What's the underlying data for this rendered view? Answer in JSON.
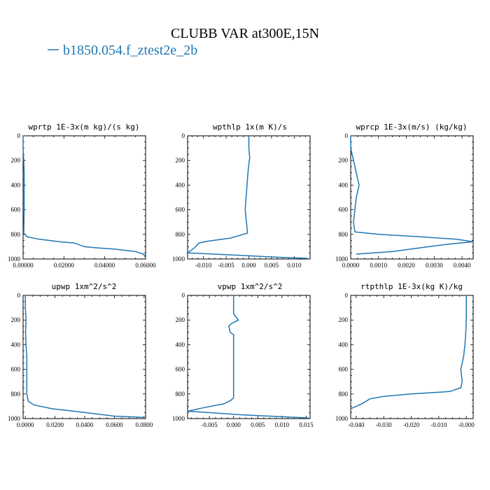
{
  "figure_title": "CLUBB VAR at300E,15N",
  "legend": {
    "label": "b1850.054.f_ztest2e_2b",
    "color": "#1f77b4"
  },
  "chart_data": [
    {
      "type": "line",
      "title": "wprtp  1E-3x(m kg)/(s kg)",
      "xlim": [
        0,
        0.06
      ],
      "ylim": [
        1000,
        0
      ],
      "xticks": [
        0,
        0.02,
        0.04,
        0.06
      ],
      "xtick_labels": [
        "0.00000",
        "0.02000",
        "0.04000",
        "0.06000"
      ],
      "yticks": [
        0,
        200,
        400,
        600,
        800,
        1000
      ],
      "ytick_labels": [
        "0",
        "200",
        "400",
        "600",
        "800",
        "1000"
      ],
      "series": [
        {
          "x": [
            0,
            0,
            0.0003,
            0.0005,
            0.0005,
            0.0005,
            0.0005,
            0.0004,
            0.0003,
            0.002,
            0.008,
            0.018,
            0.025,
            0.03,
            0.037,
            0.045,
            0.055,
            0.059,
            0.06
          ],
          "y": [
            0,
            100,
            200,
            300,
            400,
            500,
            600,
            700,
            790,
            820,
            840,
            860,
            870,
            900,
            910,
            920,
            940,
            960,
            990
          ]
        }
      ]
    },
    {
      "type": "line",
      "title": "wpthlp  1x(m K)/s",
      "xlim": [
        -0.0135,
        0.0135
      ],
      "ylim": [
        1000,
        0
      ],
      "xticks": [
        -0.01,
        -0.005,
        0,
        0.005,
        0.01
      ],
      "xtick_labels": [
        "-0.010",
        "-0.005",
        "0.000",
        "0.005",
        "0.010"
      ],
      "yticks": [
        0,
        200,
        400,
        600,
        800,
        1000
      ],
      "ytick_labels": [
        "0",
        "200",
        "400",
        "600",
        "800",
        "1000"
      ],
      "series": [
        {
          "x": [
            0,
            0,
            0.0002,
            0.0001,
            -0.0002,
            -0.0004,
            -0.0006,
            -0.0008,
            -0.0003,
            -0.004,
            -0.009,
            -0.011,
            -0.012,
            -0.0135,
            -0.002,
            0.006,
            0.013
          ],
          "y": [
            0,
            100,
            180,
            200,
            300,
            400,
            500,
            600,
            790,
            830,
            855,
            870,
            910,
            950,
            970,
            985,
            995
          ]
        }
      ]
    },
    {
      "type": "line",
      "title": "wprcp  1E-3x(m/s) (kg/kg)",
      "xlim": [
        0,
        0.0044
      ],
      "ylim": [
        1000,
        0
      ],
      "xticks": [
        0,
        0.001,
        0.002,
        0.003,
        0.004
      ],
      "xtick_labels": [
        "0.0000",
        "0.0010",
        "0.0020",
        "0.0030",
        "0.0040"
      ],
      "yticks": [
        0,
        200,
        400,
        600,
        800,
        1000
      ],
      "ytick_labels": [
        "0",
        "200",
        "400",
        "600",
        "800",
        "1000"
      ],
      "series": [
        {
          "x": [
            0,
            0,
            0.0001,
            0.0002,
            0.0003,
            0.0002,
            0.00015,
            0.0001,
            0.00015,
            0.001,
            0.0025,
            0.0038,
            0.0044,
            0.0035,
            0.0028,
            0.0015,
            0.0002
          ],
          "y": [
            0,
            100,
            200,
            300,
            400,
            500,
            600,
            700,
            780,
            800,
            820,
            840,
            860,
            880,
            900,
            940,
            960
          ]
        }
      ]
    },
    {
      "type": "line",
      "title": "upwp  1xm^2/s^2",
      "xlim": [
        -0.0015,
        0.081
      ],
      "ylim": [
        1000,
        0
      ],
      "xticks": [
        0,
        0.02,
        0.04,
        0.06,
        0.08
      ],
      "xtick_labels": [
        "0.0000",
        "0.0200",
        "0.0400",
        "0.0600",
        "0.0800"
      ],
      "yticks": [
        0,
        200,
        400,
        600,
        800,
        1000
      ],
      "ytick_labels": [
        "0",
        "200",
        "400",
        "600",
        "800",
        "1000"
      ],
      "series": [
        {
          "x": [
            0,
            0,
            0.0005,
            0.0002,
            0.0005,
            0.001,
            0.001,
            0.001,
            0.002,
            0.006,
            0.018,
            0.04,
            0.06,
            0.08
          ],
          "y": [
            0,
            100,
            190,
            300,
            400,
            500,
            600,
            800,
            860,
            890,
            920,
            950,
            980,
            990
          ]
        }
      ]
    },
    {
      "type": "line",
      "title": "vpwp  1xm^2/s^2",
      "xlim": [
        -0.0095,
        0.0158
      ],
      "ylim": [
        1000,
        0
      ],
      "xticks": [
        -0.005,
        0,
        0.005,
        0.01,
        0.015
      ],
      "xtick_labels": [
        "-0.005",
        "0.000",
        "0.005",
        "0.010",
        "0.015"
      ],
      "yticks": [
        0,
        200,
        400,
        600,
        800,
        1000
      ],
      "ytick_labels": [
        "0",
        "200",
        "400",
        "600",
        "800",
        "1000"
      ],
      "series": [
        {
          "x": [
            0,
            0,
            0.001,
            -0.0005,
            -0.001,
            -0.0007,
            0,
            0,
            0,
            -0.0005,
            -0.002,
            -0.006,
            -0.0095,
            0.002,
            0.0155
          ],
          "y": [
            0,
            150,
            200,
            230,
            250,
            300,
            320,
            500,
            830,
            850,
            880,
            910,
            940,
            970,
            995
          ]
        }
      ]
    },
    {
      "type": "line",
      "title": "rtpthlp  1E-3x(kg K)/kg",
      "xlim": [
        -0.042,
        0.0025
      ],
      "ylim": [
        1000,
        0
      ],
      "xticks": [
        -0.04,
        -0.03,
        -0.02,
        -0.01,
        0
      ],
      "xtick_labels": [
        "-0.040",
        "-0.030",
        "-0.020",
        "-0.010",
        "-0.000"
      ],
      "yticks": [
        0,
        200,
        400,
        600,
        800,
        1000
      ],
      "ytick_labels": [
        "0",
        "200",
        "400",
        "600",
        "800",
        "1000"
      ],
      "series": [
        {
          "x": [
            0,
            0,
            -0.0002,
            -0.0005,
            -0.001,
            -0.002,
            -0.0015,
            -0.002,
            -0.006,
            -0.02,
            -0.03,
            -0.035,
            -0.038,
            -0.042
          ],
          "y": [
            0,
            200,
            300,
            400,
            500,
            600,
            700,
            750,
            780,
            800,
            820,
            840,
            880,
            920
          ]
        }
      ]
    }
  ]
}
